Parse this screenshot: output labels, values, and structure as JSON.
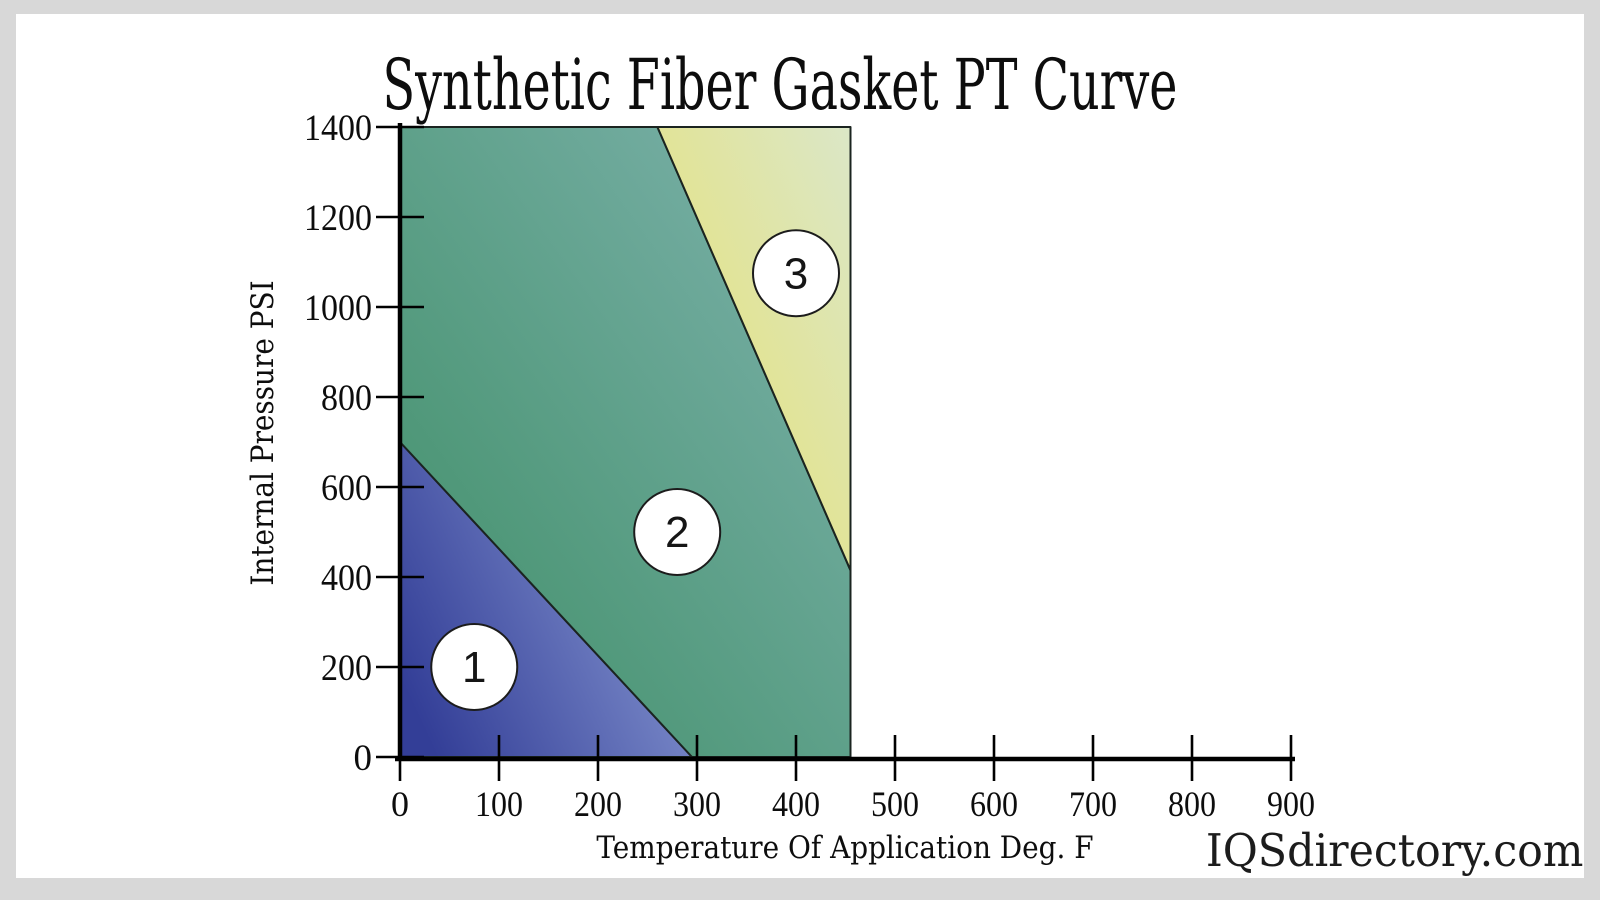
{
  "page": {
    "background": "#d8d8d8",
    "canvas_background": "#ffffff"
  },
  "watermark": "IQSdirectory.com",
  "chart_data": {
    "type": "area",
    "title": "Synthetic Fiber Gasket PT Curve",
    "xlabel": "Temperature Of Application Deg. F",
    "ylabel": "Internal Pressure PSI",
    "xlim": [
      0,
      900
    ],
    "ylim": [
      0,
      1400
    ],
    "x_ticks": [
      0,
      100,
      200,
      300,
      400,
      500,
      600,
      700,
      800,
      900
    ],
    "y_ticks": [
      0,
      200,
      400,
      600,
      800,
      1000,
      1200,
      1400
    ],
    "grid": false,
    "legend_position": "none",
    "axis_color": "#000000",
    "tick_label_color": "#0d0d0d",
    "outline_color": "#1b2420",
    "max_temperature_deg_f": 455,
    "max_pressure_psi": 1400,
    "zones": [
      {
        "label": "1",
        "marker": {
          "x": 75,
          "y": 200
        },
        "polygon": [
          [
            0,
            0
          ],
          [
            0,
            700
          ],
          [
            295,
            0
          ]
        ],
        "gradient": {
          "from": "#333e97",
          "to": "#8d9ed6",
          "x1": 0,
          "y1": 0.75,
          "x2": 1,
          "y2": 0.25
        }
      },
      {
        "label": "2",
        "marker": {
          "x": 280,
          "y": 500
        },
        "polygon": [
          [
            0,
            700
          ],
          [
            0,
            1400
          ],
          [
            260,
            1400
          ],
          [
            455,
            415
          ],
          [
            455,
            0
          ],
          [
            295,
            0
          ]
        ],
        "gradient": {
          "from": "#3e8e66",
          "to": "#7fb3ae",
          "x1": 0,
          "y1": 1,
          "x2": 1,
          "y2": 0
        }
      },
      {
        "label": "3",
        "marker": {
          "x": 400,
          "y": 1075
        },
        "polygon": [
          [
            260,
            1400
          ],
          [
            455,
            1400
          ],
          [
            455,
            415
          ]
        ],
        "gradient": {
          "from": "#e8e06a",
          "to": "#dbe7c7",
          "x1": 0,
          "y1": 1,
          "x2": 1,
          "y2": 0
        }
      }
    ],
    "boundaries": [
      {
        "name": "zone1-zone2",
        "from_xy": [
          0,
          700
        ],
        "to_xy": [
          295,
          0
        ]
      },
      {
        "name": "zone2-zone3",
        "from_xy": [
          260,
          1400
        ],
        "to_xy": [
          455,
          415
        ]
      },
      {
        "name": "max-temperature-edge",
        "from_xy": [
          455,
          1400
        ],
        "to_xy": [
          455,
          0
        ]
      }
    ],
    "marker_style": {
      "fill": "#ffffff",
      "stroke": "#1c1c1c",
      "radius_px": 43
    }
  }
}
